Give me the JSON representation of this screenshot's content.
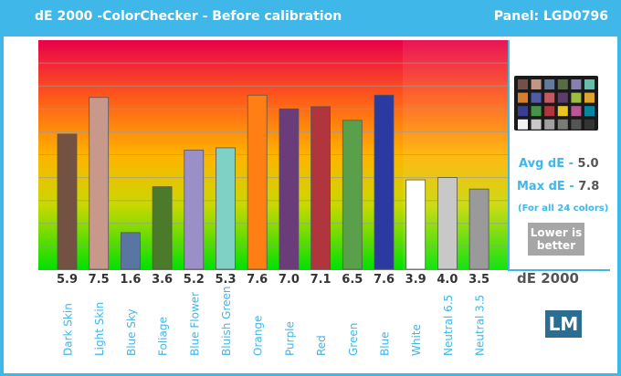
{
  "header": {
    "title": "dE 2000 -ColorChecker - Before calibration",
    "panel": "Panel: LGD0796"
  },
  "chart_data": {
    "type": "bar",
    "categories": [
      "Dark Skin",
      "Light Skin",
      "Blue Sky",
      "Foliage",
      "Blue Flower",
      "Bluish Green",
      "Orange",
      "Purple",
      "Red",
      "Green",
      "Blue",
      "White",
      "Neutral 6.5",
      "Neutral 3.5"
    ],
    "values": [
      5.9,
      7.5,
      1.6,
      3.6,
      5.2,
      5.3,
      7.6,
      7.0,
      7.1,
      6.5,
      7.6,
      3.9,
      4.0,
      3.5
    ],
    "value_labels": [
      "5.9",
      "7.5",
      "1.6",
      "3.6",
      "5.2",
      "5.3",
      "7.6",
      "7.0",
      "7.1",
      "6.5",
      "7.6",
      "3.9",
      "4.0",
      "3.5"
    ],
    "bar_colors": [
      "#735244",
      "#c29682",
      "#627a9d",
      "#576c43",
      "#8580b1",
      "#67bdaa",
      "#d67e2c",
      "#505ba6",
      "#c15a63",
      "#5e3c6c",
      "#9dbc40",
      "#e0a32e",
      "#383d96",
      "#469449"
    ],
    "yticks": [
      "1.0",
      "2.0",
      "3.0",
      "4.0",
      "5.0",
      "6.0",
      "7.0",
      "8.0",
      "9.0"
    ],
    "ylim": [
      0,
      10
    ],
    "xlabel": "dE 2000",
    "grid": true
  },
  "fill_colors": [
    "#735244",
    "#c8998a",
    "#5976a3",
    "#4a7a2a",
    "#9b8fc7",
    "#7fd1c6",
    "#ff7f15",
    "#6a3c7a",
    "#b0353d",
    "#5aa04a",
    "#2a3aa0",
    "#ffffff",
    "#c8c8c8",
    "#9a9a9a"
  ],
  "info": {
    "avg_label": "Avg dE - ",
    "avg_value": "5.0",
    "max_label": "Max dE - ",
    "max_value": "7.8",
    "note": "(For all 24 colors)",
    "lower_line1": "Lower is",
    "lower_line2": "better"
  },
  "logo": "LM",
  "checker_colors": [
    "#735244",
    "#c29682",
    "#627a9d",
    "#576c43",
    "#8580b1",
    "#67bdaa",
    "#d67e2c",
    "#505ba6",
    "#c15a63",
    "#5e3c6c",
    "#9dbc40",
    "#e0a32e",
    "#383d96",
    "#469449",
    "#af363c",
    "#e7c71f",
    "#bb5695",
    "#0885a1",
    "#f3f3f2",
    "#c8c8c8",
    "#a0a0a0",
    "#7a7a79",
    "#555555",
    "#343434"
  ]
}
